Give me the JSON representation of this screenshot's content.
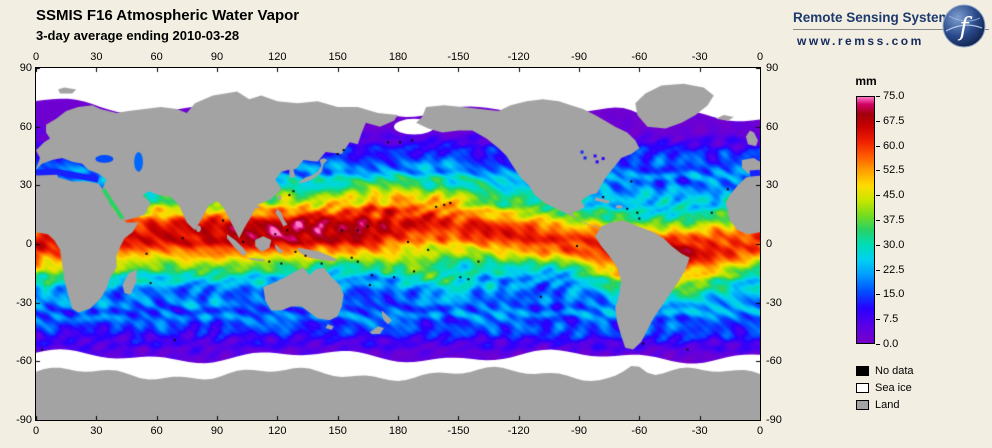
{
  "header": {
    "title": "SSMIS F16 Atmospheric Water Vapor",
    "subtitle": "3-day average ending 2010-03-28",
    "brand": {
      "name": "Remote Sensing Systems",
      "url": "www.remss.com"
    }
  },
  "map": {
    "lon_ticks": [
      "0",
      "30",
      "60",
      "90",
      "120",
      "150",
      "180",
      "-150",
      "-120",
      "-90",
      "-60",
      "-30",
      "0"
    ],
    "lat_ticks": [
      "90",
      "60",
      "30",
      "0",
      "-30",
      "-60",
      "-90"
    ]
  },
  "colorbar": {
    "units": "mm",
    "min": 0,
    "max": 75,
    "tick_labels": [
      "75.0",
      "67.5",
      "60.0",
      "52.5",
      "45.0",
      "37.5",
      "30.0",
      "22.5",
      "15.0",
      "7.5",
      "0.0"
    ],
    "stops": [
      {
        "t": 0.0,
        "c": "#7800C8"
      },
      {
        "t": 0.07,
        "c": "#5A00E6"
      },
      {
        "t": 0.14,
        "c": "#2800FF"
      },
      {
        "t": 0.21,
        "c": "#0050FF"
      },
      {
        "t": 0.28,
        "c": "#00A0FF"
      },
      {
        "t": 0.34,
        "c": "#00D2F0"
      },
      {
        "t": 0.4,
        "c": "#00DCB4"
      },
      {
        "t": 0.46,
        "c": "#28D264"
      },
      {
        "t": 0.52,
        "c": "#78DC1E"
      },
      {
        "t": 0.58,
        "c": "#C8E600"
      },
      {
        "t": 0.64,
        "c": "#FFDC00"
      },
      {
        "t": 0.7,
        "c": "#FFA000"
      },
      {
        "t": 0.76,
        "c": "#FF5A00"
      },
      {
        "t": 0.82,
        "c": "#F01E00"
      },
      {
        "t": 0.88,
        "c": "#C80000"
      },
      {
        "t": 0.93,
        "c": "#A0000A"
      },
      {
        "t": 0.97,
        "c": "#D20064"
      },
      {
        "t": 1.0,
        "c": "#FF78C8"
      }
    ]
  },
  "legend": {
    "items": [
      {
        "label": "No data",
        "color": "#000000"
      },
      {
        "label": "Sea ice",
        "color": "#FFFFFF"
      },
      {
        "label": "Land",
        "color": "#A3A3A3"
      }
    ]
  },
  "colors": {
    "background": "#F2EFE2",
    "land": "#A3A3A3",
    "sea_ice": "#FFFFFF",
    "no_data": "#000000",
    "frame": "#000000",
    "brand_text": "#1E3A6E"
  },
  "chart_data": {
    "type": "heatmap",
    "title": "SSMIS F16 Atmospheric Water Vapor",
    "subtitle": "3-day average ending 2010-03-28",
    "units": "mm",
    "value_range": [
      0,
      75
    ],
    "colorbar_tick_values": [
      75.0,
      67.5,
      60.0,
      52.5,
      45.0,
      37.5,
      30.0,
      22.5,
      15.0,
      7.5,
      0.0
    ],
    "lon_ticks": [
      0,
      30,
      60,
      90,
      120,
      150,
      180,
      -150,
      -120,
      -90,
      -60,
      -30,
      0
    ],
    "lat_ticks": [
      90,
      60,
      30,
      0,
      -30,
      -60,
      -90
    ],
    "non_data_categories": [
      "No data",
      "Sea ice",
      "Land"
    ]
  }
}
